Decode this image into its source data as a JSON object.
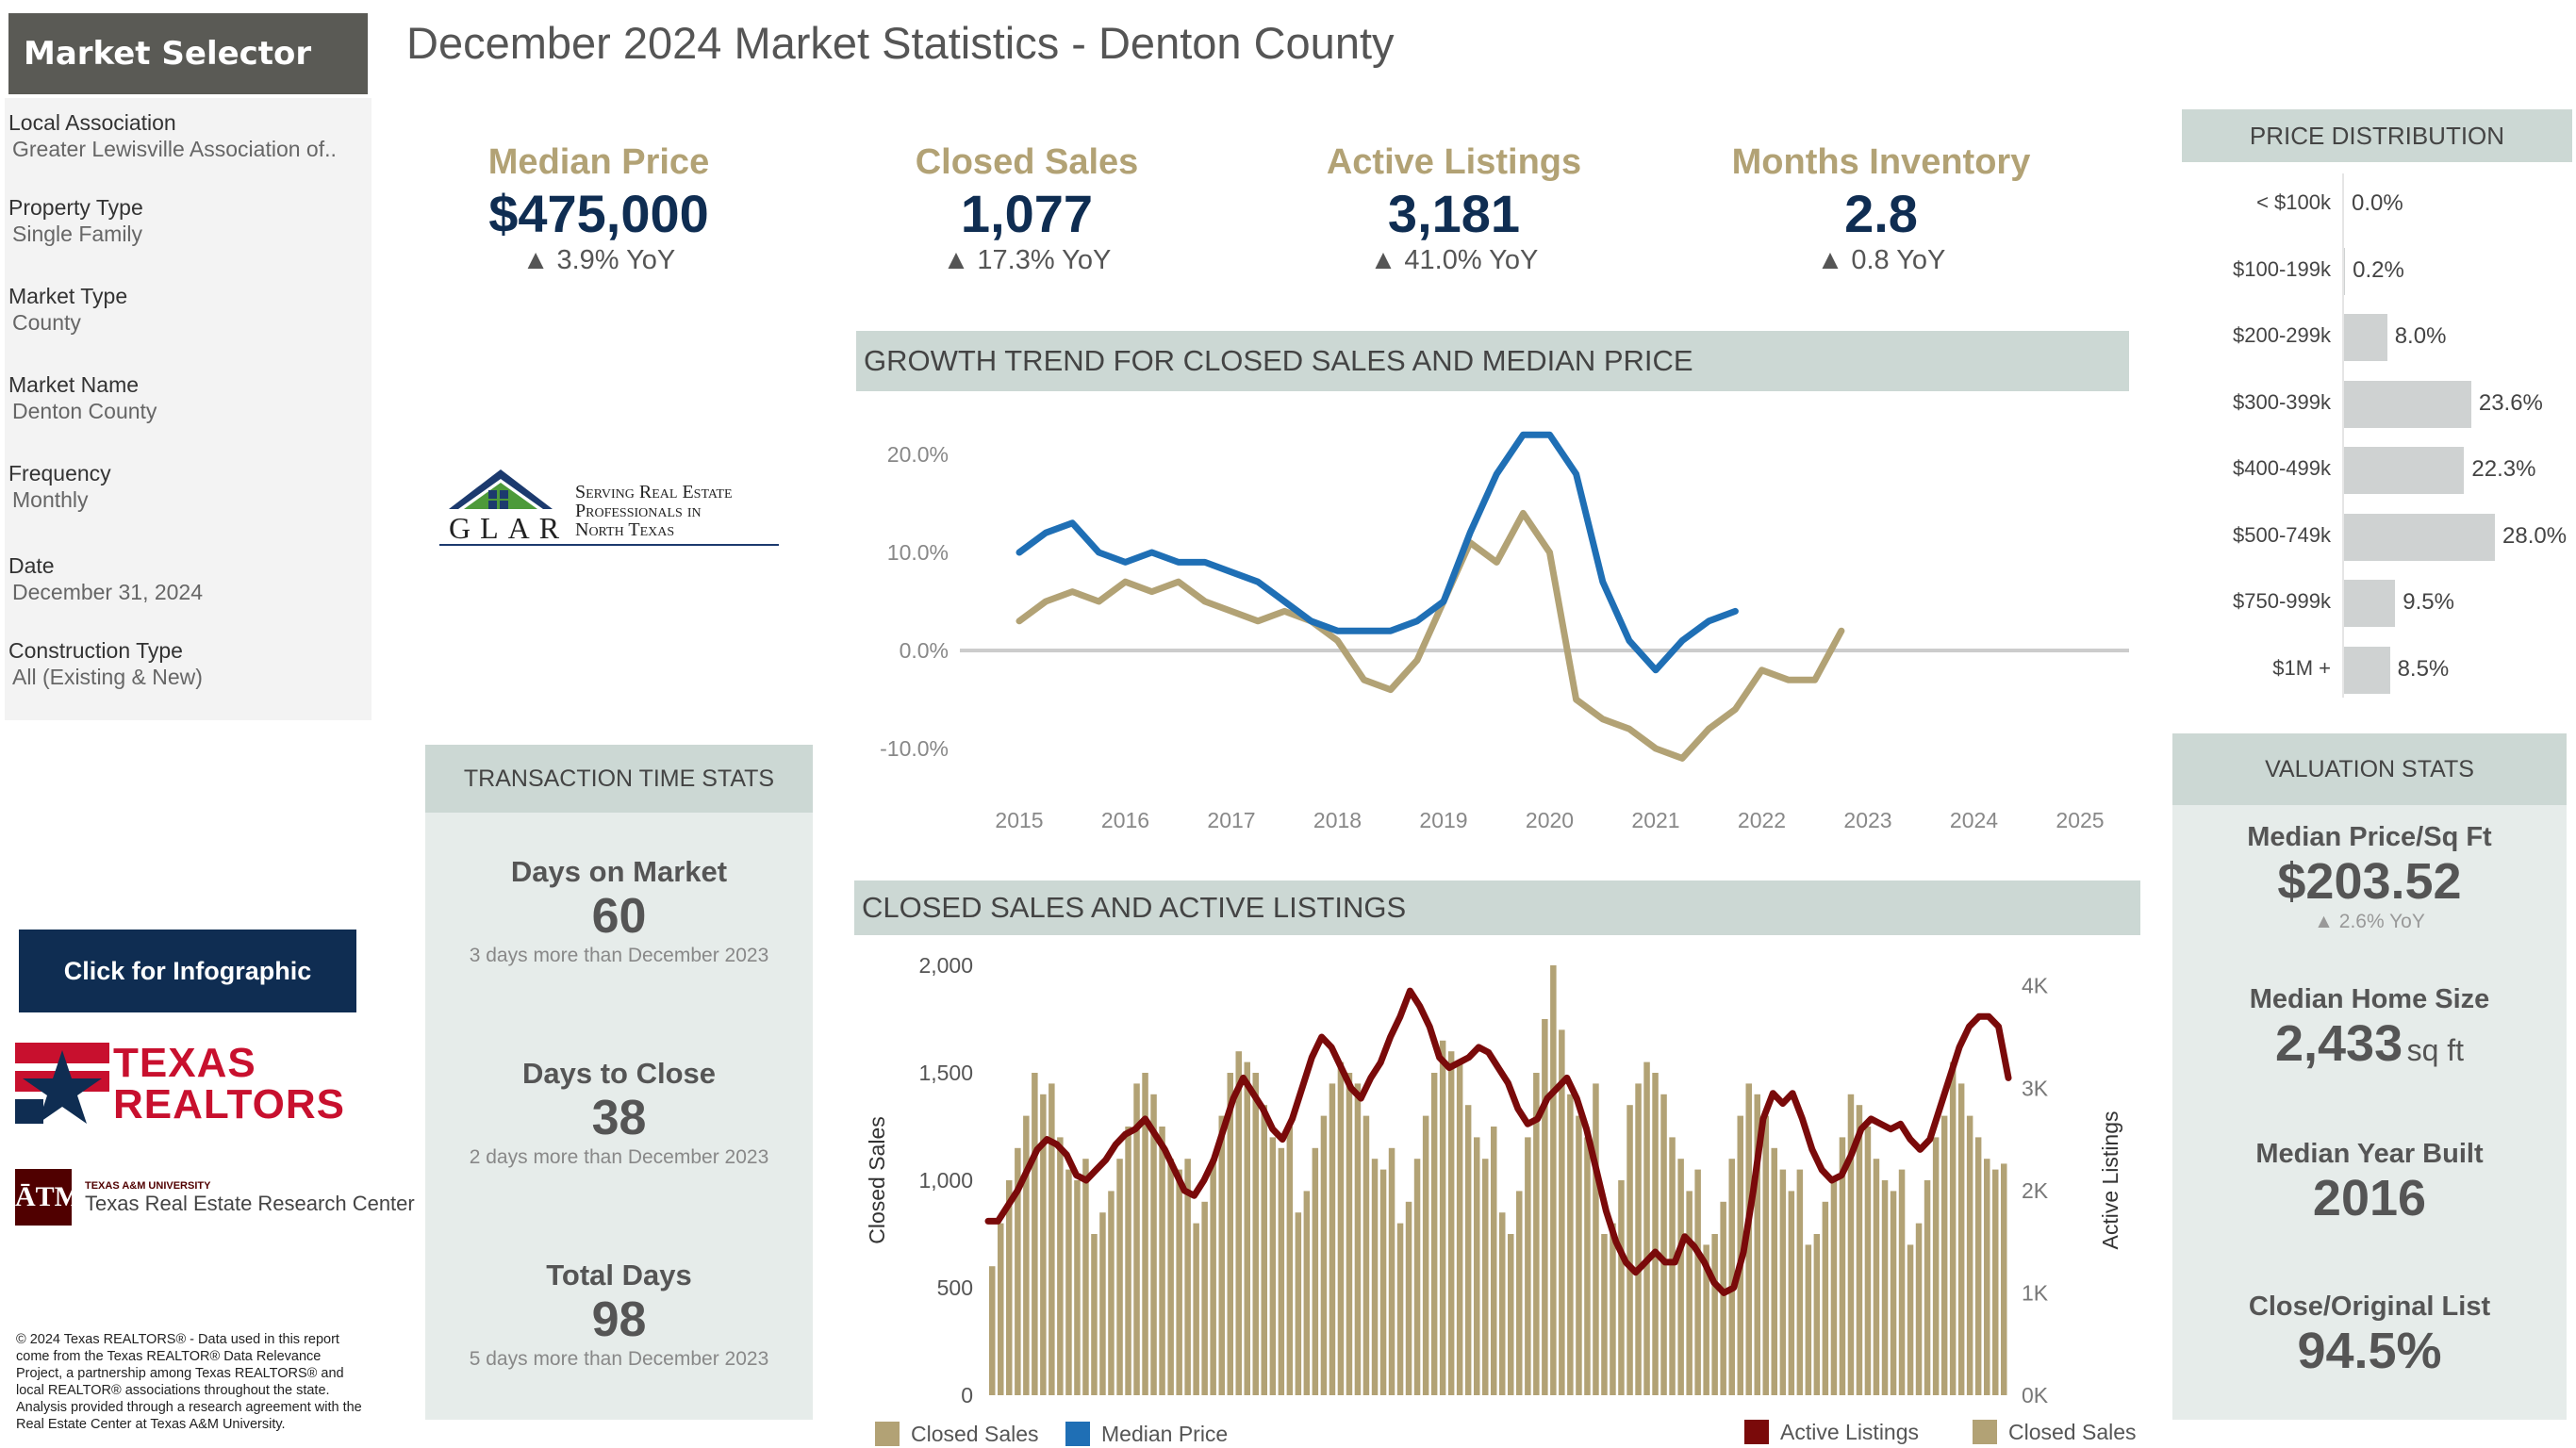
{
  "sidebar": {
    "header": "Market Selector",
    "items": [
      {
        "label": "Local Association",
        "value": "Greater Lewisville Association of.."
      },
      {
        "label": "Property Type",
        "value": "Single Family"
      },
      {
        "label": "Market Type",
        "value": "County"
      },
      {
        "label": "Market Name",
        "value": "Denton County"
      },
      {
        "label": "Frequency",
        "value": "Monthly"
      },
      {
        "label": "Date",
        "value": "December 31, 2024"
      },
      {
        "label": "Construction Type",
        "value": "All (Existing & New)"
      }
    ],
    "glar_logo": {
      "letters": "GLAR",
      "tagline": [
        "Serving Real Estate",
        "Professionals in",
        "North Texas"
      ]
    },
    "infographic_button": "Click for Infographic",
    "texas_realtors_logo": {
      "line1": "TEXAS",
      "line2": "REALTORS"
    },
    "tamu_logo": {
      "line1": "TEXAS A&M UNIVERSITY",
      "line2": "Texas Real Estate Research Center"
    },
    "copyright": "© 2024 Texas REALTORS® - Data used in this report come from the Texas REALTOR® Data Relevance Project, a partnership among Texas REALTORS® and local REALTOR® associations throughout the state. Analysis provided through a research agreement with the Real Estate Center at Texas A&M University."
  },
  "title": "December 2024 Market Statistics - Denton County",
  "kpis": [
    {
      "label": "Median Price",
      "value": "$475,000",
      "yoy": "▲ 3.9% YoY"
    },
    {
      "label": "Closed Sales",
      "value": "1,077",
      "yoy": "▲ 17.3% YoY"
    },
    {
      "label": "Active Listings",
      "value": "3,181",
      "yoy": "▲ 41.0% YoY"
    },
    {
      "label": "Months Inventory",
      "value": "2.8",
      "yoy": "▲ 0.8 YoY"
    }
  ],
  "transaction": {
    "header": "TRANSACTION TIME STATS",
    "items": [
      {
        "label": "Days on Market",
        "value": "60",
        "note": "3 days more than December 2023"
      },
      {
        "label": "Days to Close",
        "value": "38",
        "note": "2 days more than December 2023"
      },
      {
        "label": "Total Days",
        "value": "98",
        "note": "5 days more than December 2023"
      }
    ]
  },
  "valuation": {
    "header": "VALUATION STATS",
    "items": [
      {
        "label": "Median Price/Sq Ft",
        "value": "$203.52",
        "note": "▲ 2.6% YoY",
        "unit": ""
      },
      {
        "label": "Median Home Size",
        "value": "2,433",
        "unit": "sq ft",
        "note": ""
      },
      {
        "label": "Median Year Built",
        "value": "2016",
        "unit": "",
        "note": ""
      },
      {
        "label": "Close/Original List",
        "value": "94.5%",
        "unit": "",
        "note": ""
      }
    ]
  },
  "colors": {
    "navy": "#0f2d52",
    "gold": "#b2a275",
    "blue": "#1f6fb5",
    "maroon": "#7a0a0a",
    "header_bg": "#ccd8d4",
    "panel_bg": "#e6ecea",
    "bar_gray": "#cfd2d2"
  },
  "chart_data": [
    {
      "type": "line",
      "title": "GROWTH TREND FOR CLOSED SALES AND MEDIAN PRICE",
      "x_ticks": [
        "2015",
        "2016",
        "2017",
        "2018",
        "2019",
        "2020",
        "2021",
        "2022",
        "2023",
        "2024",
        "2025"
      ],
      "y_ticks": [
        "20.0%",
        "10.0%",
        "0.0%",
        "-10.0%"
      ],
      "ylim": [
        -12,
        24
      ],
      "x_start": 2015.0,
      "x_step": 0.25,
      "series": [
        {
          "name": "Closed Sales",
          "color": "#b2a275",
          "values": [
            3,
            5,
            6,
            5,
            7,
            6,
            7,
            5,
            4,
            3,
            4,
            3,
            1,
            -3,
            -4,
            -1,
            5,
            11,
            9,
            14,
            10,
            -5,
            -7,
            -8,
            -10,
            -11,
            -8,
            -6,
            -2,
            -3,
            -3,
            2
          ]
        },
        {
          "name": "Median Price",
          "color": "#1f6fb5",
          "values": [
            10,
            12,
            13,
            10,
            9,
            10,
            9,
            9,
            8,
            7,
            5,
            3,
            2,
            2,
            2,
            3,
            5,
            12,
            18,
            22,
            22,
            18,
            7,
            1,
            -2,
            1,
            3,
            4
          ]
        }
      ],
      "legend": [
        "Closed Sales",
        "Median Price"
      ]
    },
    {
      "type": "bar+line",
      "title": "CLOSED SALES AND ACTIVE LISTINGS",
      "ylabel_left": "Closed Sales",
      "ylabel_right": "Active Listings",
      "y_ticks_left": [
        "2,000",
        "1,500",
        "1,000",
        "500",
        "0"
      ],
      "y_ticks_right": [
        "4K",
        "3K",
        "2K",
        "1K",
        "0K"
      ],
      "ylim_left": [
        0,
        2000
      ],
      "ylim_right": [
        0,
        4200
      ],
      "x_start": "2015-01",
      "bars": {
        "name": "Closed Sales",
        "color": "#b2a275",
        "values": [
          600,
          800,
          1000,
          1150,
          1300,
          1500,
          1400,
          1450,
          1200,
          1050,
          1000,
          1100,
          750,
          850,
          950,
          1100,
          1250,
          1450,
          1500,
          1400,
          1250,
          1100,
          1050,
          1100,
          800,
          900,
          1100,
          1300,
          1500,
          1600,
          1550,
          1500,
          1350,
          1200,
          1150,
          1250,
          850,
          950,
          1150,
          1300,
          1450,
          1550,
          1500,
          1450,
          1300,
          1100,
          1050,
          1150,
          800,
          900,
          1100,
          1300,
          1500,
          1650,
          1600,
          1550,
          1350,
          1200,
          1100,
          1250,
          850,
          750,
          950,
          1200,
          1500,
          1750,
          2000,
          1700,
          1400,
          1300,
          1200,
          1450,
          750,
          800,
          1000,
          1350,
          1450,
          1550,
          1500,
          1400,
          1200,
          1100,
          950,
          1050,
          700,
          750,
          900,
          1100,
          1300,
          1450,
          1400,
          1300,
          1150,
          1050,
          950,
          1050,
          700,
          750,
          900,
          1000,
          1200,
          1400,
          1350,
          1250,
          1100,
          1000,
          950,
          1050,
          700,
          800,
          1000,
          1200,
          1300,
          1550,
          1450,
          1300,
          1200,
          1100,
          1050,
          1077
        ]
      },
      "line": {
        "name": "Active Listings",
        "color": "#7a0a0a",
        "values": [
          1700,
          1700,
          1850,
          2000,
          2200,
          2400,
          2500,
          2450,
          2350,
          2150,
          2100,
          2200,
          2300,
          2450,
          2550,
          2600,
          2700,
          2550,
          2400,
          2200,
          2000,
          1950,
          2100,
          2300,
          2600,
          2900,
          3100,
          2950,
          2800,
          2600,
          2500,
          2700,
          3000,
          3300,
          3500,
          3400,
          3200,
          3000,
          2900,
          3100,
          3250,
          3500,
          3700,
          3950,
          3800,
          3600,
          3300,
          3200,
          3250,
          3300,
          3400,
          3350,
          3200,
          3050,
          2800,
          2650,
          2700,
          2900,
          3000,
          3100,
          2900,
          2600,
          2200,
          1800,
          1500,
          1300,
          1200,
          1300,
          1400,
          1300,
          1300,
          1550,
          1450,
          1300,
          1100,
          1000,
          1050,
          1400,
          2000,
          2700,
          2950,
          2850,
          2950,
          2700,
          2400,
          2200,
          2100,
          2150,
          2350,
          2600,
          2700,
          2650,
          2600,
          2650,
          2500,
          2400,
          2500,
          2800,
          3100,
          3400,
          3600,
          3700,
          3700,
          3600,
          3100
        ]
      },
      "legend": [
        "Active Listings",
        "Closed Sales"
      ]
    },
    {
      "type": "bar",
      "title": "PRICE DISTRIBUTION",
      "categories": [
        "< $100k",
        "$100-199k",
        "$200-299k",
        "$300-399k",
        "$400-499k",
        "$500-749k",
        "$750-999k",
        "$1M +"
      ],
      "values": [
        0.0,
        0.2,
        8.0,
        23.6,
        22.3,
        28.0,
        9.5,
        8.5
      ],
      "labels": [
        "0.0%",
        "0.2%",
        "8.0%",
        "23.6%",
        "22.3%",
        "28.0%",
        "9.5%",
        "8.5%"
      ]
    }
  ]
}
